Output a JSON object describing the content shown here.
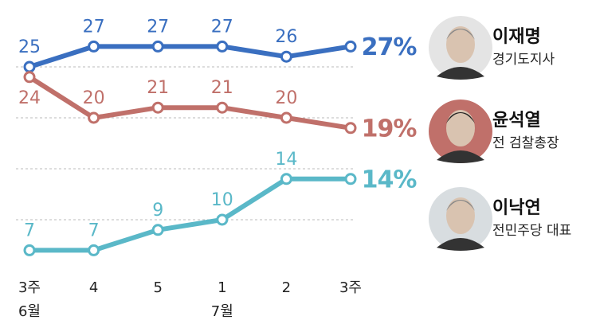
{
  "chart_data": {
    "type": "line",
    "categories": [
      "3주",
      "4",
      "5",
      "1",
      "2",
      "3주"
    ],
    "month_labels": [
      "6월",
      null,
      null,
      "7월",
      null,
      null
    ],
    "series": [
      {
        "name": "이재명",
        "role": "경기도지사",
        "color": "#3a6fc0",
        "values": [
          25,
          27,
          27,
          27,
          26,
          27
        ],
        "value_labels": [
          "25",
          "27",
          "27",
          "27",
          "26",
          "27%"
        ]
      },
      {
        "name": "윤석열",
        "role": "전 검찰총장",
        "color": "#c0706a",
        "values": [
          24,
          20,
          21,
          21,
          20,
          19
        ],
        "value_labels": [
          "24",
          "20",
          "21",
          "21",
          "20",
          "19%"
        ]
      },
      {
        "name": "이낙연",
        "role": "전민주당 대표",
        "color": "#5ab8c8",
        "values": [
          7,
          7,
          9,
          10,
          14,
          14
        ],
        "value_labels": [
          "7",
          "7",
          "9",
          "10",
          "14",
          "14%"
        ]
      }
    ],
    "ylim": [
      5,
      30
    ],
    "gridlines": [
      10,
      15,
      20,
      25
    ]
  }
}
